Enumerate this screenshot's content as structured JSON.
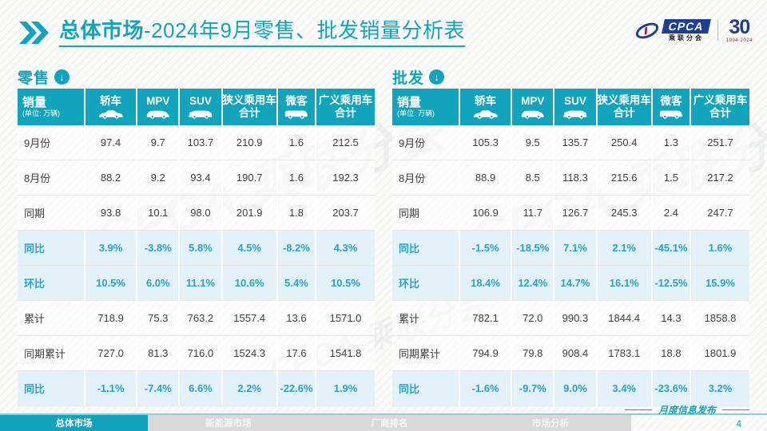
{
  "accent_color": "#12a3bd",
  "highlight_bg": "#e3f1f8",
  "percent_color": "#2aa2cc",
  "header": {
    "title_bold": "总体市场",
    "title_rest": "-2024年9月零售、批发销量分析表",
    "logo": {
      "cpca": "CPCA",
      "cpca_sub": "乘联分会",
      "anniversary": "30",
      "years": "1994-2024"
    }
  },
  "watermark": "CPCA 乘联分会",
  "columns": [
    {
      "key": "sales",
      "label": "销量",
      "sub": "(单位: 万辆)",
      "icon": null
    },
    {
      "key": "sedan",
      "label": "轿车",
      "icon": "sedan-car-icon"
    },
    {
      "key": "mpv",
      "label": "MPV",
      "icon": "mpv-car-icon"
    },
    {
      "key": "suv",
      "label": "SUV",
      "icon": "suv-car-icon"
    },
    {
      "key": "narrow-total",
      "label": "狭义乘用车",
      "label2": "合计",
      "icon": null
    },
    {
      "key": "microvan",
      "label": "微客",
      "icon": "microvan-icon"
    },
    {
      "key": "broad-total",
      "label": "广义乘用车",
      "label2": "合计",
      "icon": null
    }
  ],
  "tables": {
    "retail": {
      "section_label": "零售",
      "rows": [
        {
          "label": "9月份",
          "highlight": false,
          "values": [
            "97.4",
            "9.7",
            "103.7",
            "210.9",
            "1.6",
            "212.5"
          ]
        },
        {
          "label": "8月份",
          "highlight": false,
          "values": [
            "88.2",
            "9.2",
            "93.4",
            "190.7",
            "1.6",
            "192.3"
          ]
        },
        {
          "label": "同期",
          "highlight": false,
          "values": [
            "93.8",
            "10.1",
            "98.0",
            "201.9",
            "1.8",
            "203.7"
          ]
        },
        {
          "label": "同比",
          "highlight": true,
          "values": [
            "3.9%",
            "-3.8%",
            "5.8%",
            "4.5%",
            "-8.2%",
            "4.3%"
          ]
        },
        {
          "label": "环比",
          "highlight": true,
          "values": [
            "10.5%",
            "6.0%",
            "11.1%",
            "10.6%",
            "5.4%",
            "10.5%"
          ]
        },
        {
          "label": "累计",
          "highlight": false,
          "values": [
            "718.9",
            "75.3",
            "763.2",
            "1557.4",
            "13.6",
            "1571.0"
          ]
        },
        {
          "label": "同期累计",
          "highlight": false,
          "values": [
            "727.0",
            "81.3",
            "716.0",
            "1524.3",
            "17.6",
            "1541.8"
          ]
        },
        {
          "label": "同比",
          "highlight": true,
          "values": [
            "-1.1%",
            "-7.4%",
            "6.6%",
            "2.2%",
            "-22.6%",
            "1.9%"
          ]
        }
      ]
    },
    "wholesale": {
      "section_label": "批发",
      "rows": [
        {
          "label": "9月份",
          "highlight": false,
          "values": [
            "105.3",
            "9.5",
            "135.7",
            "250.4",
            "1.3",
            "251.7"
          ]
        },
        {
          "label": "8月份",
          "highlight": false,
          "values": [
            "88.9",
            "8.5",
            "118.3",
            "215.6",
            "1.5",
            "217.2"
          ]
        },
        {
          "label": "同期",
          "highlight": false,
          "values": [
            "106.9",
            "11.7",
            "126.7",
            "245.3",
            "2.4",
            "247.7"
          ]
        },
        {
          "label": "同比",
          "highlight": true,
          "values": [
            "-1.5%",
            "-18.5%",
            "7.1%",
            "2.1%",
            "-45.1%",
            "1.6%"
          ]
        },
        {
          "label": "环比",
          "highlight": true,
          "values": [
            "18.4%",
            "12.4%",
            "14.7%",
            "16.1%",
            "-12.5%",
            "15.9%"
          ]
        },
        {
          "label": "累计",
          "highlight": false,
          "values": [
            "782.1",
            "72.0",
            "990.3",
            "1844.4",
            "14.3",
            "1858.8"
          ]
        },
        {
          "label": "同期累计",
          "highlight": false,
          "values": [
            "794.9",
            "79.8",
            "908.4",
            "1783.1",
            "18.8",
            "1801.9"
          ]
        },
        {
          "label": "同比",
          "highlight": true,
          "values": [
            "-1.6%",
            "-9.7%",
            "9.0%",
            "3.4%",
            "-23.6%",
            "3.2%"
          ]
        }
      ]
    }
  },
  "footer": {
    "tabs": [
      {
        "label": "总体市场",
        "active": true
      },
      {
        "label": "新能源市场",
        "active": false
      },
      {
        "label": "厂商排名",
        "active": false
      },
      {
        "label": "市场分析",
        "active": false
      }
    ],
    "release_label": "月度信息发布",
    "page_number": "4"
  }
}
